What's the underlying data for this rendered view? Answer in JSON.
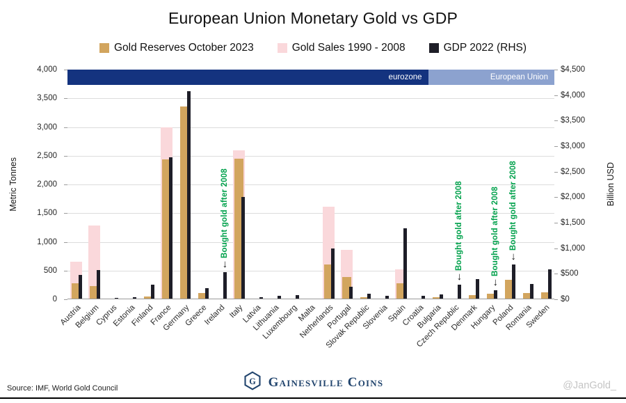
{
  "title": "European Union Monetary Gold vs GDP",
  "chart_data": {
    "type": "bar",
    "title": "European Union Monetary Gold vs GDP",
    "categories": [
      "Austria",
      "Belgium",
      "Cyprus",
      "Estonia",
      "Finland",
      "France",
      "Germany",
      "Greece",
      "Ireland",
      "Italy",
      "Latvia",
      "Lithuania",
      "Luxembourg",
      "Malta",
      "Netherlands",
      "Portugal",
      "Slovak Republic",
      "Slovenia",
      "Spain",
      "Croatia",
      "Bulgaria",
      "Czech Republic",
      "Denmark",
      "Hungary",
      "Poland",
      "Romania",
      "Sweden"
    ],
    "series": [
      {
        "name": "Gold Reserves October 2023",
        "axis": "left",
        "color": "#D2A55E",
        "values": [
          280,
          227,
          14,
          1,
          49,
          2437,
          3353,
          114,
          12,
          2452,
          7,
          6,
          2,
          0,
          612,
          383,
          32,
          3,
          282,
          2,
          41,
          12,
          67,
          94,
          334,
          104,
          126
        ]
      },
      {
        "name": "Gold Sales 1990 - 2008",
        "axis": "left",
        "color": "#FAD8DB",
        "values": [
          650,
          1290,
          0,
          0,
          0,
          2990,
          0,
          0,
          0,
          2590,
          0,
          0,
          0,
          0,
          1610,
          860,
          0,
          0,
          525,
          0,
          0,
          0,
          0,
          0,
          0,
          0,
          0
        ]
      },
      {
        "name": "GDP 2022 (RHS)",
        "axis": "right",
        "color": "#1E1E28",
        "values": [
          471,
          578,
          29,
          38,
          281,
          2780,
          4082,
          219,
          533,
          2010,
          41,
          70,
          82,
          18,
          991,
          252,
          115,
          62,
          1397,
          71,
          90,
          290,
          395,
          178,
          688,
          301,
          591
        ]
      }
    ],
    "left_axis": {
      "label": "Metric Tonnes",
      "min": 0,
      "max": 4000,
      "tick_step": 500,
      "tick_labels": [
        "0",
        "500",
        "1,000",
        "1,500",
        "2,000",
        "2,500",
        "3,000",
        "3,500",
        "4,000"
      ]
    },
    "right_axis": {
      "label": "Billion USD",
      "min": 0,
      "max": 4500,
      "tick_step": 500,
      "tick_labels": [
        "$0",
        "$500",
        "$1,000",
        "$1,500",
        "$2,000",
        "$2,500",
        "$3,000",
        "$3,500",
        "$4,000",
        "$4,500"
      ]
    },
    "banner": {
      "sections": [
        {
          "label": "eurozone",
          "color": "#14337F",
          "from": 0,
          "to": 19
        },
        {
          "label": "European Union",
          "color": "#8CA2CF",
          "from": 20,
          "to": 26
        }
      ]
    },
    "annotations": [
      {
        "category": "Ireland",
        "text": "Bought gold after 2008"
      },
      {
        "category": "Czech Republic",
        "text": "Bought gold after 2008"
      },
      {
        "category": "Hungary",
        "text": "Bought gold after 2008"
      },
      {
        "category": "Poland",
        "text": "Bought gold after 2008"
      }
    ],
    "grid": true,
    "legend_position": "top"
  },
  "footer": {
    "source": "Source: IMF, World Gold Council",
    "brand": "Gainesville Coins",
    "watermark": "@JanGold_"
  }
}
